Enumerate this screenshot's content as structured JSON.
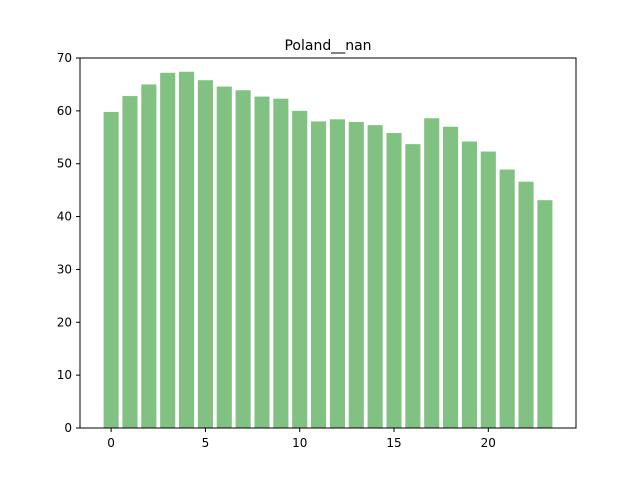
{
  "chart_data": {
    "type": "bar",
    "title": "Poland__nan",
    "xlabel": "",
    "ylabel": "",
    "x": [
      0,
      1,
      2,
      3,
      4,
      5,
      6,
      7,
      8,
      9,
      10,
      11,
      12,
      13,
      14,
      15,
      16,
      17,
      18,
      19,
      20,
      21,
      22,
      23
    ],
    "values": [
      59.8,
      62.8,
      65.0,
      67.2,
      67.4,
      65.8,
      64.6,
      63.9,
      62.7,
      62.3,
      60.0,
      58.0,
      58.4,
      57.9,
      57.3,
      55.8,
      53.7,
      58.6,
      57.0,
      54.2,
      52.3,
      48.9,
      46.6,
      43.1
    ],
    "xlim": [
      -1.65,
      24.65
    ],
    "ylim": [
      0,
      70
    ],
    "xticks": [
      "0",
      "5",
      "10",
      "15",
      "20"
    ],
    "yticks": [
      "0",
      "10",
      "20",
      "30",
      "40",
      "50",
      "60",
      "70"
    ],
    "grid": false,
    "bar_color": "#81c181"
  }
}
